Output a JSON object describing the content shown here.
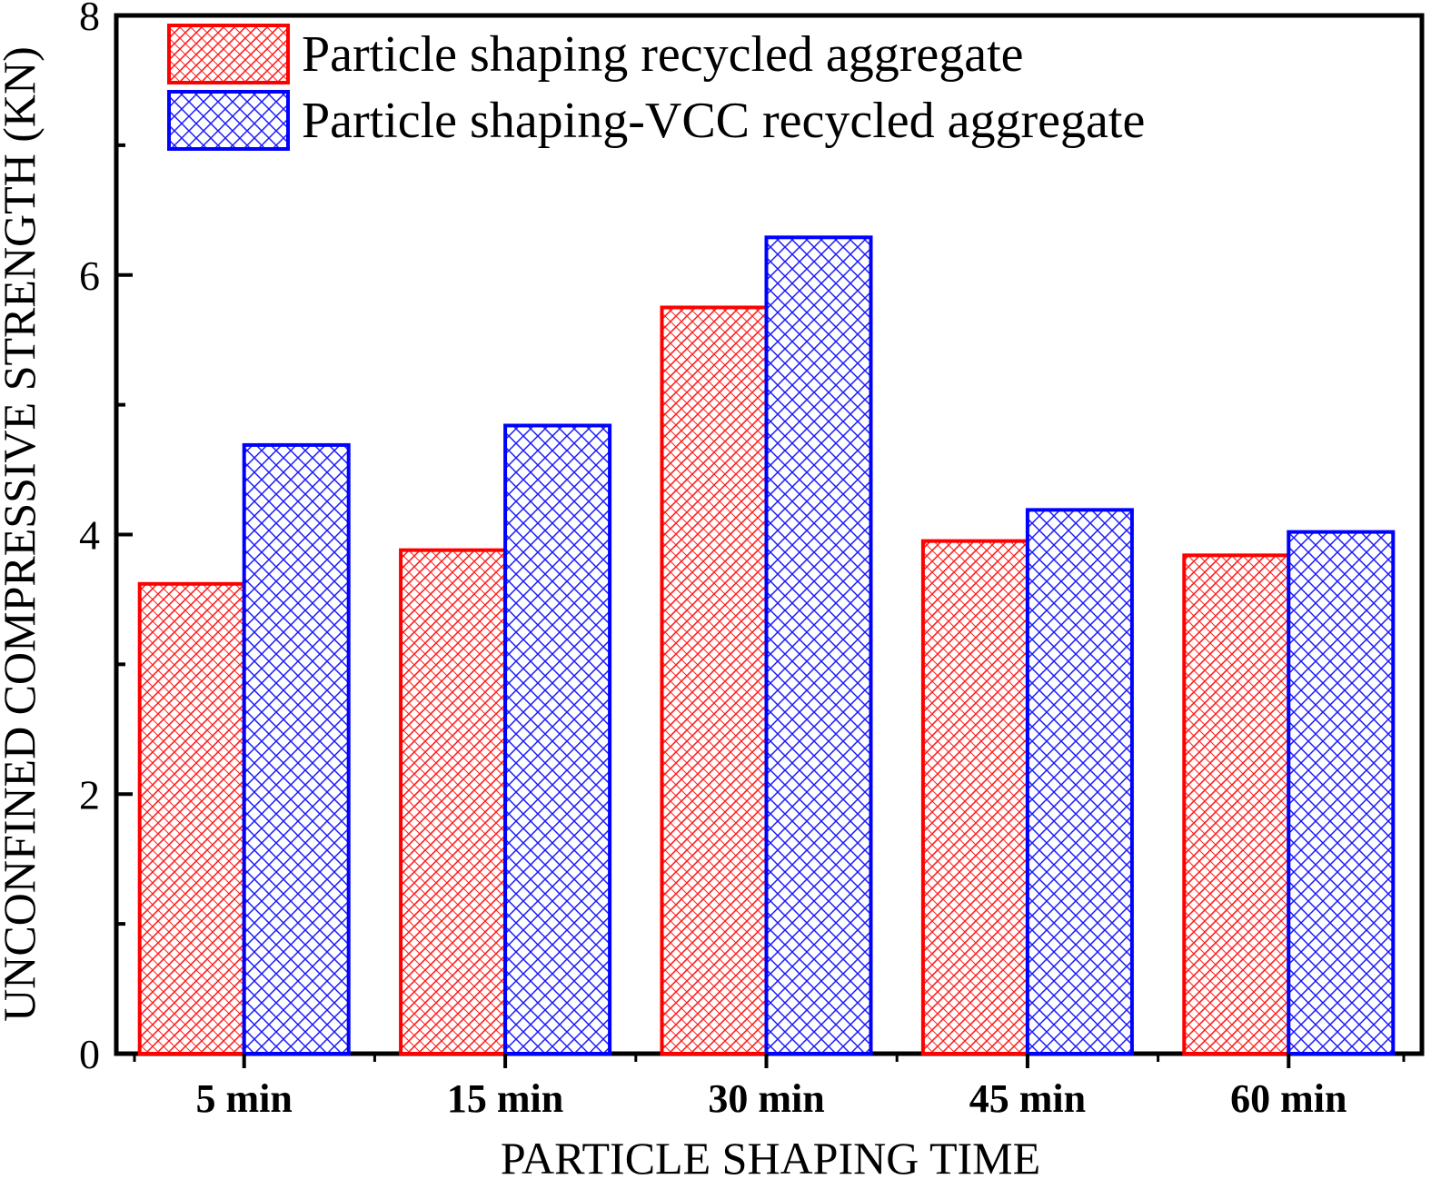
{
  "chart_data": {
    "type": "bar",
    "title": "",
    "xlabel": "PARTICLE SHAPING TIME",
    "ylabel": "UNCONFINED COMPRESSIVE STRENGTH (KN)",
    "categories": [
      "5 min",
      "15 min",
      "30 min",
      "45 min",
      "60 min"
    ],
    "ylim": [
      0,
      8
    ],
    "yticks": [
      "0",
      "2",
      "4",
      "6",
      "8"
    ],
    "grid": false,
    "legend_position": "top-left",
    "series": [
      {
        "name": "Particle shaping recycled aggregate",
        "values": [
          3.62,
          3.88,
          5.75,
          3.95,
          3.84
        ],
        "color": "#ff0000",
        "pattern": "diagonal-crosshatch-fine"
      },
      {
        "name": "Particle shaping-VCC recycled aggregate",
        "values": [
          4.69,
          4.84,
          6.29,
          4.19,
          4.02
        ],
        "color": "#0000ff",
        "pattern": "crosshatch"
      }
    ]
  }
}
